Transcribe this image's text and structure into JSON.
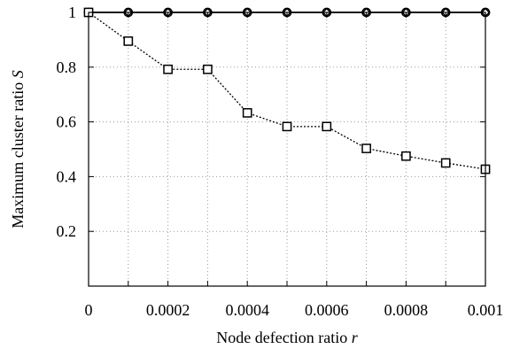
{
  "chart_data": {
    "type": "line",
    "xlabel": {
      "text": "Node defection ratio ",
      "var": "r"
    },
    "ylabel": {
      "text": "Maximum cluster ratio ",
      "var": "S"
    },
    "xlim": [
      0,
      0.001
    ],
    "ylim": [
      0,
      1
    ],
    "x_ticks": [
      "0",
      "0.0002",
      "0.0004",
      "0.0006",
      "0.0008",
      "0.001"
    ],
    "y_ticks": [
      "0.2",
      "0.4",
      "0.6",
      "0.8",
      "1"
    ],
    "grid": true,
    "x": [
      0,
      0.0001,
      0.0002,
      0.0003,
      0.0004,
      0.0005,
      0.0006,
      0.0007,
      0.0008,
      0.0009,
      0.001
    ],
    "series": [
      {
        "values": [
          1,
          1,
          1,
          1,
          1,
          1,
          1,
          1,
          1,
          1,
          1
        ],
        "marker": "circle",
        "line": "solid"
      },
      {
        "values": [
          1,
          1,
          1,
          1,
          1,
          1,
          1,
          1,
          1,
          1,
          1
        ],
        "marker": "diamond",
        "line": "solid"
      },
      {
        "values": [
          1,
          0.895,
          0.792,
          0.792,
          0.633,
          0.583,
          0.583,
          0.503,
          0.475,
          0.45,
          0.427
        ],
        "marker": "square",
        "line": "dotted"
      }
    ]
  }
}
